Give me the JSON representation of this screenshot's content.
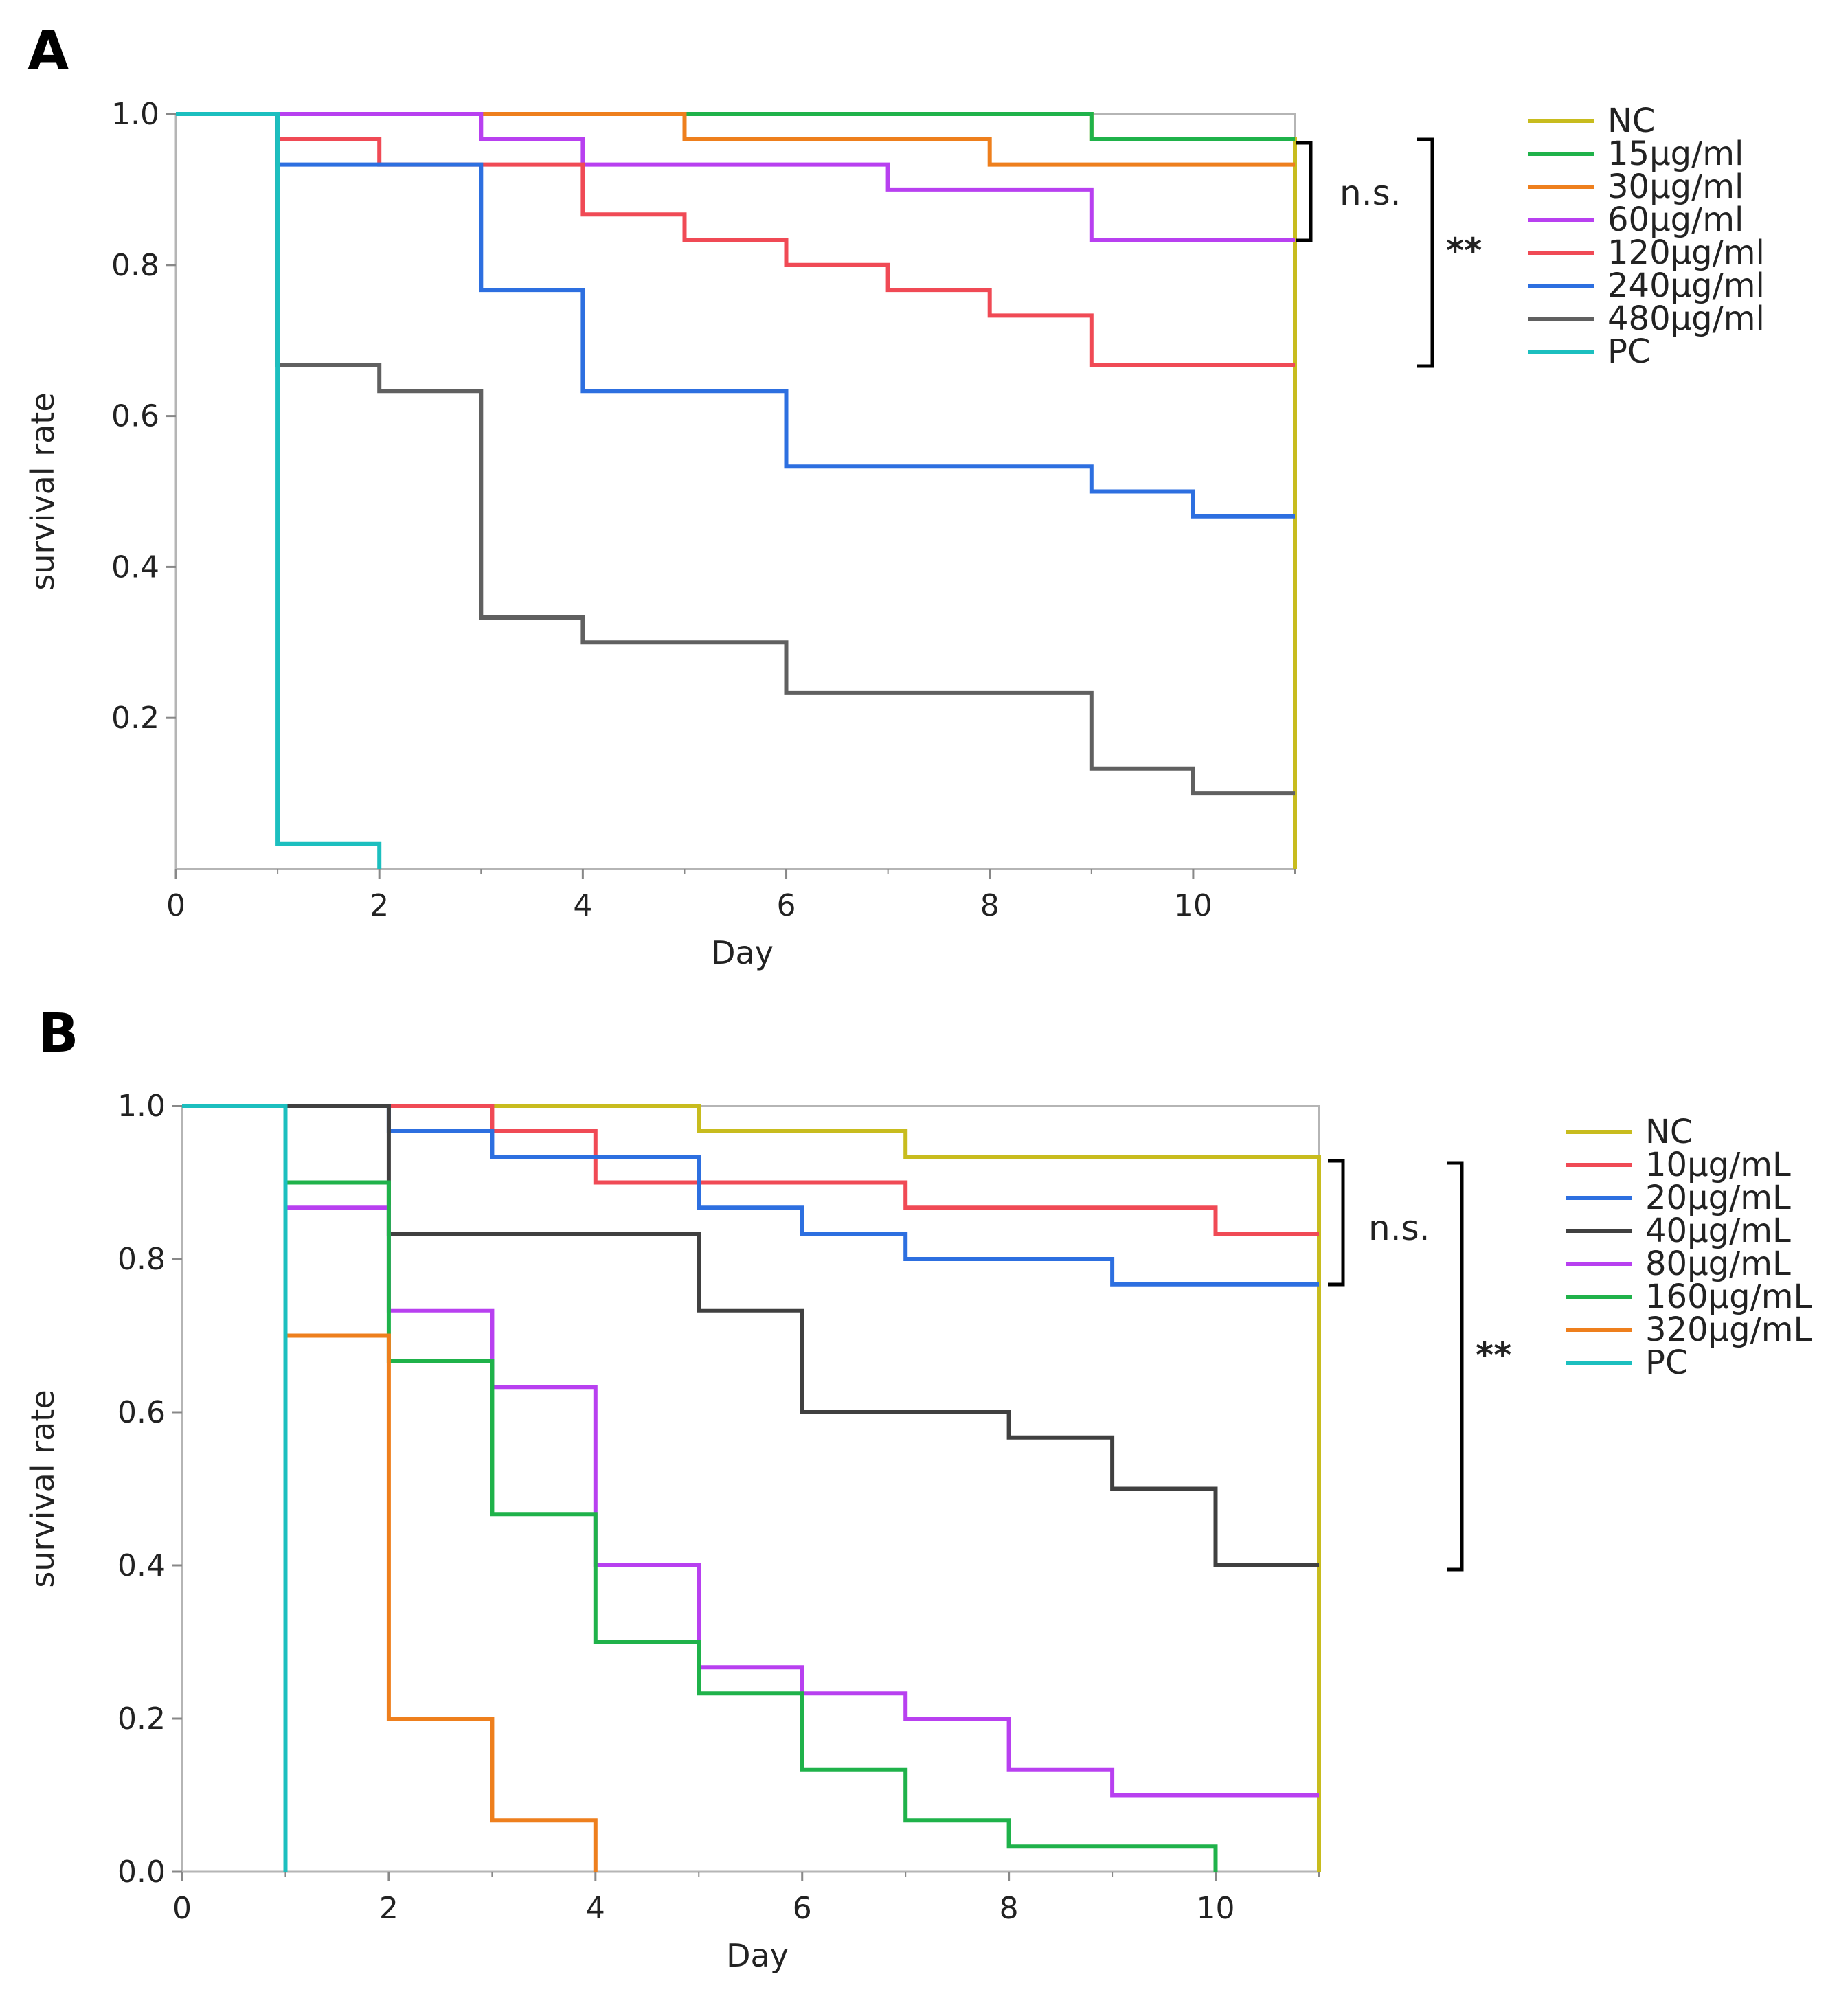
{
  "panels": [
    {
      "letter": "A",
      "chart_data": {
        "type": "line",
        "subtype": "kaplan-meier step",
        "xlabel": "Day",
        "ylabel": "survival rate",
        "xlim": [
          0,
          11
        ],
        "ylim": [
          0,
          1.0
        ],
        "x_ticks": [
          "0",
          "2",
          "4",
          "6",
          "8",
          "10"
        ],
        "y_ticks": [
          "0.2",
          "0.4",
          "0.6",
          "0.8",
          "1.0"
        ],
        "grid": false,
        "legend": "right",
        "series": [
          {
            "name": "NC",
            "color": "#c8bc1e",
            "points": [
              [
                0,
                1.0
              ],
              [
                9,
                1.0
              ],
              [
                9,
                0.967
              ],
              [
                11,
                0.967
              ],
              [
                11,
                0
              ]
            ]
          },
          {
            "name": "15μg/ml",
            "color": "#1fb24a",
            "points": [
              [
                0,
                1.0
              ],
              [
                9,
                1.0
              ],
              [
                9,
                0.967
              ],
              [
                11,
                0.967
              ]
            ]
          },
          {
            "name": "30μg/ml",
            "color": "#ee7f1d",
            "points": [
              [
                0,
                1.0
              ],
              [
                5,
                1.0
              ],
              [
                5,
                0.967
              ],
              [
                8,
                0.967
              ],
              [
                8,
                0.933
              ],
              [
                11,
                0.933
              ]
            ]
          },
          {
            "name": "60μg/ml",
            "color": "#b840f0",
            "points": [
              [
                0,
                1.0
              ],
              [
                3,
                1.0
              ],
              [
                3,
                0.967
              ],
              [
                4,
                0.967
              ],
              [
                4,
                0.933
              ],
              [
                7,
                0.933
              ],
              [
                7,
                0.9
              ],
              [
                9,
                0.9
              ],
              [
                9,
                0.833
              ],
              [
                11,
                0.833
              ]
            ]
          },
          {
            "name": "120μg/ml",
            "color": "#f04a55",
            "points": [
              [
                0,
                1.0
              ],
              [
                1,
                1.0
              ],
              [
                1,
                0.967
              ],
              [
                2,
                0.967
              ],
              [
                2,
                0.933
              ],
              [
                4,
                0.933
              ],
              [
                4,
                0.867
              ],
              [
                5,
                0.867
              ],
              [
                5,
                0.833
              ],
              [
                6,
                0.833
              ],
              [
                6,
                0.8
              ],
              [
                7,
                0.8
              ],
              [
                7,
                0.767
              ],
              [
                8,
                0.767
              ],
              [
                8,
                0.733
              ],
              [
                9,
                0.733
              ],
              [
                9,
                0.667
              ],
              [
                11,
                0.667
              ]
            ]
          },
          {
            "name": "240μg/ml",
            "color": "#2d6fe0",
            "points": [
              [
                0,
                1.0
              ],
              [
                1,
                1.0
              ],
              [
                1,
                0.933
              ],
              [
                3,
                0.933
              ],
              [
                3,
                0.767
              ],
              [
                4,
                0.767
              ],
              [
                4,
                0.633
              ],
              [
                6,
                0.633
              ],
              [
                6,
                0.533
              ],
              [
                9,
                0.533
              ],
              [
                9,
                0.5
              ],
              [
                10,
                0.5
              ],
              [
                10,
                0.467
              ],
              [
                11,
                0.467
              ]
            ]
          },
          {
            "name": "480μg/ml",
            "color": "#606060",
            "points": [
              [
                0,
                1.0
              ],
              [
                1,
                1.0
              ],
              [
                1,
                0.667
              ],
              [
                2,
                0.667
              ],
              [
                2,
                0.633
              ],
              [
                3,
                0.633
              ],
              [
                3,
                0.333
              ],
              [
                4,
                0.333
              ],
              [
                4,
                0.3
              ],
              [
                6,
                0.3
              ],
              [
                6,
                0.233
              ],
              [
                9,
                0.233
              ],
              [
                9,
                0.133
              ],
              [
                10,
                0.133
              ],
              [
                10,
                0.1
              ],
              [
                11,
                0.1
              ]
            ]
          },
          {
            "name": "PC",
            "color": "#1cbfbf",
            "points": [
              [
                0,
                1.0
              ],
              [
                1,
                1.0
              ],
              [
                1,
                0.033
              ],
              [
                2,
                0.033
              ],
              [
                2,
                0
              ]
            ]
          }
        ],
        "annotations": {
          "ns": "n.s.",
          "sig": "**"
        }
      }
    },
    {
      "letter": "B",
      "chart_data": {
        "type": "line",
        "subtype": "kaplan-meier step",
        "xlabel": "Day",
        "ylabel": "survival rate",
        "xlim": [
          0,
          11
        ],
        "ylim": [
          0,
          1.0
        ],
        "x_ticks": [
          "0",
          "2",
          "4",
          "6",
          "8",
          "10"
        ],
        "y_ticks": [
          "0.0",
          "0.2",
          "0.4",
          "0.6",
          "0.8",
          "1.0"
        ],
        "grid": false,
        "legend": "right",
        "series": [
          {
            "name": "NC",
            "color": "#c8bc1e",
            "points": [
              [
                0,
                1.0
              ],
              [
                5,
                1.0
              ],
              [
                5,
                0.967
              ],
              [
                7,
                0.967
              ],
              [
                7,
                0.933
              ],
              [
                11,
                0.933
              ],
              [
                11,
                0
              ]
            ]
          },
          {
            "name": "10μg/mL",
            "color": "#f04a55",
            "points": [
              [
                0,
                1.0
              ],
              [
                3,
                1.0
              ],
              [
                3,
                0.967
              ],
              [
                4,
                0.967
              ],
              [
                4,
                0.9
              ],
              [
                7,
                0.9
              ],
              [
                7,
                0.867
              ],
              [
                10,
                0.867
              ],
              [
                10,
                0.833
              ],
              [
                11,
                0.833
              ]
            ]
          },
          {
            "name": "20μg/mL",
            "color": "#2d6fe0",
            "points": [
              [
                0,
                1.0
              ],
              [
                2,
                1.0
              ],
              [
                2,
                0.967
              ],
              [
                3,
                0.967
              ],
              [
                3,
                0.933
              ],
              [
                5,
                0.933
              ],
              [
                5,
                0.867
              ],
              [
                6,
                0.867
              ],
              [
                6,
                0.833
              ],
              [
                7,
                0.833
              ],
              [
                7,
                0.8
              ],
              [
                9,
                0.8
              ],
              [
                9,
                0.767
              ],
              [
                11,
                0.767
              ]
            ]
          },
          {
            "name": "40μg/mL",
            "color": "#404040",
            "points": [
              [
                0,
                1.0
              ],
              [
                2,
                1.0
              ],
              [
                2,
                0.833
              ],
              [
                5,
                0.833
              ],
              [
                5,
                0.733
              ],
              [
                6,
                0.733
              ],
              [
                6,
                0.6
              ],
              [
                8,
                0.6
              ],
              [
                8,
                0.567
              ],
              [
                9,
                0.567
              ],
              [
                9,
                0.5
              ],
              [
                10,
                0.5
              ],
              [
                10,
                0.4
              ],
              [
                11,
                0.4
              ]
            ]
          },
          {
            "name": "80μg/mL",
            "color": "#b840f0",
            "points": [
              [
                0,
                1.0
              ],
              [
                1,
                1.0
              ],
              [
                1,
                0.867
              ],
              [
                2,
                0.867
              ],
              [
                2,
                0.733
              ],
              [
                3,
                0.733
              ],
              [
                3,
                0.633
              ],
              [
                4,
                0.633
              ],
              [
                4,
                0.4
              ],
              [
                5,
                0.4
              ],
              [
                5,
                0.267
              ],
              [
                6,
                0.267
              ],
              [
                6,
                0.233
              ],
              [
                7,
                0.233
              ],
              [
                7,
                0.2
              ],
              [
                8,
                0.2
              ],
              [
                8,
                0.133
              ],
              [
                9,
                0.133
              ],
              [
                9,
                0.1
              ],
              [
                11,
                0.1
              ]
            ]
          },
          {
            "name": "160μg/mL",
            "color": "#1fb24a",
            "points": [
              [
                0,
                1.0
              ],
              [
                1,
                1.0
              ],
              [
                1,
                0.9
              ],
              [
                2,
                0.9
              ],
              [
                2,
                0.667
              ],
              [
                3,
                0.667
              ],
              [
                3,
                0.467
              ],
              [
                4,
                0.467
              ],
              [
                4,
                0.3
              ],
              [
                5,
                0.3
              ],
              [
                5,
                0.233
              ],
              [
                6,
                0.233
              ],
              [
                6,
                0.133
              ],
              [
                7,
                0.133
              ],
              [
                7,
                0.067
              ],
              [
                8,
                0.067
              ],
              [
                8,
                0.033
              ],
              [
                10,
                0.033
              ],
              [
                10,
                0
              ]
            ]
          },
          {
            "name": "320μg/mL",
            "color": "#ee7f1d",
            "points": [
              [
                0,
                1.0
              ],
              [
                1,
                1.0
              ],
              [
                1,
                0.7
              ],
              [
                2,
                0.7
              ],
              [
                2,
                0.2
              ],
              [
                3,
                0.2
              ],
              [
                3,
                0.067
              ],
              [
                4,
                0.067
              ],
              [
                4,
                0
              ]
            ]
          },
          {
            "name": "PC",
            "color": "#1cbfbf",
            "points": [
              [
                0,
                1.0
              ],
              [
                1,
                1.0
              ],
              [
                1,
                0
              ]
            ]
          }
        ],
        "annotations": {
          "ns": "n.s.",
          "sig": "**"
        }
      }
    }
  ]
}
